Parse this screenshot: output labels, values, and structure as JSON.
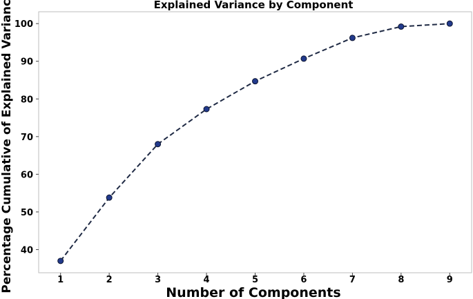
{
  "chart_data": {
    "type": "line",
    "title": "Explained Variance by Component",
    "xlabel": "Number of Components",
    "ylabel": "Percentage Cumulative of Explained Variance",
    "x": [
      1,
      2,
      3,
      4,
      5,
      6,
      7,
      8,
      9
    ],
    "series": [
      {
        "values": [
          37.0,
          53.8,
          68.0,
          77.3,
          84.7,
          90.7,
          96.2,
          99.2,
          100.0
        ]
      }
    ],
    "x_ticks": [
      "1",
      "2",
      "3",
      "4",
      "5",
      "6",
      "7",
      "8",
      "9"
    ],
    "y_ticks": [
      "40",
      "50",
      "60",
      "70",
      "80",
      "90",
      "100"
    ],
    "xlim": [
      0.55,
      9.45
    ],
    "ylim": [
      33.85,
      103.15
    ],
    "grid": false,
    "line_style": "dashed",
    "marker": "circle",
    "colors": {
      "line": "#1f2a44",
      "marker_fill": "#223a8c",
      "marker_edge": "#0d1530",
      "frame": "#bdbdbd"
    }
  }
}
